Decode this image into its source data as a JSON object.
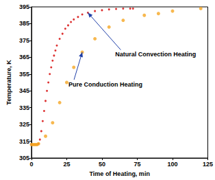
{
  "chart_data": {
    "type": "scatter",
    "x_label": "Time of Heating, min",
    "y_label": "Temperature, K",
    "xlim": [
      0,
      125
    ],
    "xticks": [
      0,
      25,
      50,
      75,
      100,
      125
    ],
    "ylim": [
      305,
      395
    ],
    "yticks": [
      305,
      315,
      325,
      335,
      345,
      355,
      365,
      375,
      385,
      395
    ],
    "grid": false,
    "series": [
      {
        "color": "#d40000",
        "marker": "circle",
        "x": [
          0,
          1,
          2,
          3,
          4,
          5,
          6,
          7,
          8,
          9,
          10,
          11,
          12,
          13,
          14,
          15,
          16,
          17,
          18,
          20,
          22,
          24,
          26,
          28,
          30,
          33,
          36,
          40,
          45,
          50,
          55,
          60,
          65,
          70,
          72
        ],
        "values": [
          313,
          313,
          313,
          313,
          313,
          313.5,
          316,
          321,
          327,
          333,
          339,
          345,
          350,
          355,
          359,
          363,
          366,
          369,
          372,
          376,
          379,
          382,
          384,
          386,
          387.5,
          389,
          390.5,
          391.5,
          392.5,
          393,
          393.5,
          393.8,
          394,
          394,
          394
        ]
      },
      {
        "color": "#f5a623",
        "marker": "circle",
        "x": [
          0,
          1,
          2,
          3,
          4,
          5,
          10,
          15,
          20,
          25,
          30,
          36,
          45,
          55,
          65,
          80,
          90,
          100,
          120
        ],
        "values": [
          313,
          313,
          313,
          313,
          313,
          313.5,
          318,
          326,
          338,
          350,
          359,
          368,
          376,
          383,
          387,
          390,
          391,
          392.5,
          394
        ]
      }
    ],
    "annotations": [
      {
        "text": "Natural Convection Heating",
        "x": 40,
        "y": 391.5
      },
      {
        "text": "Pure Conduction Heating",
        "x": 36,
        "y": 368
      }
    ]
  }
}
